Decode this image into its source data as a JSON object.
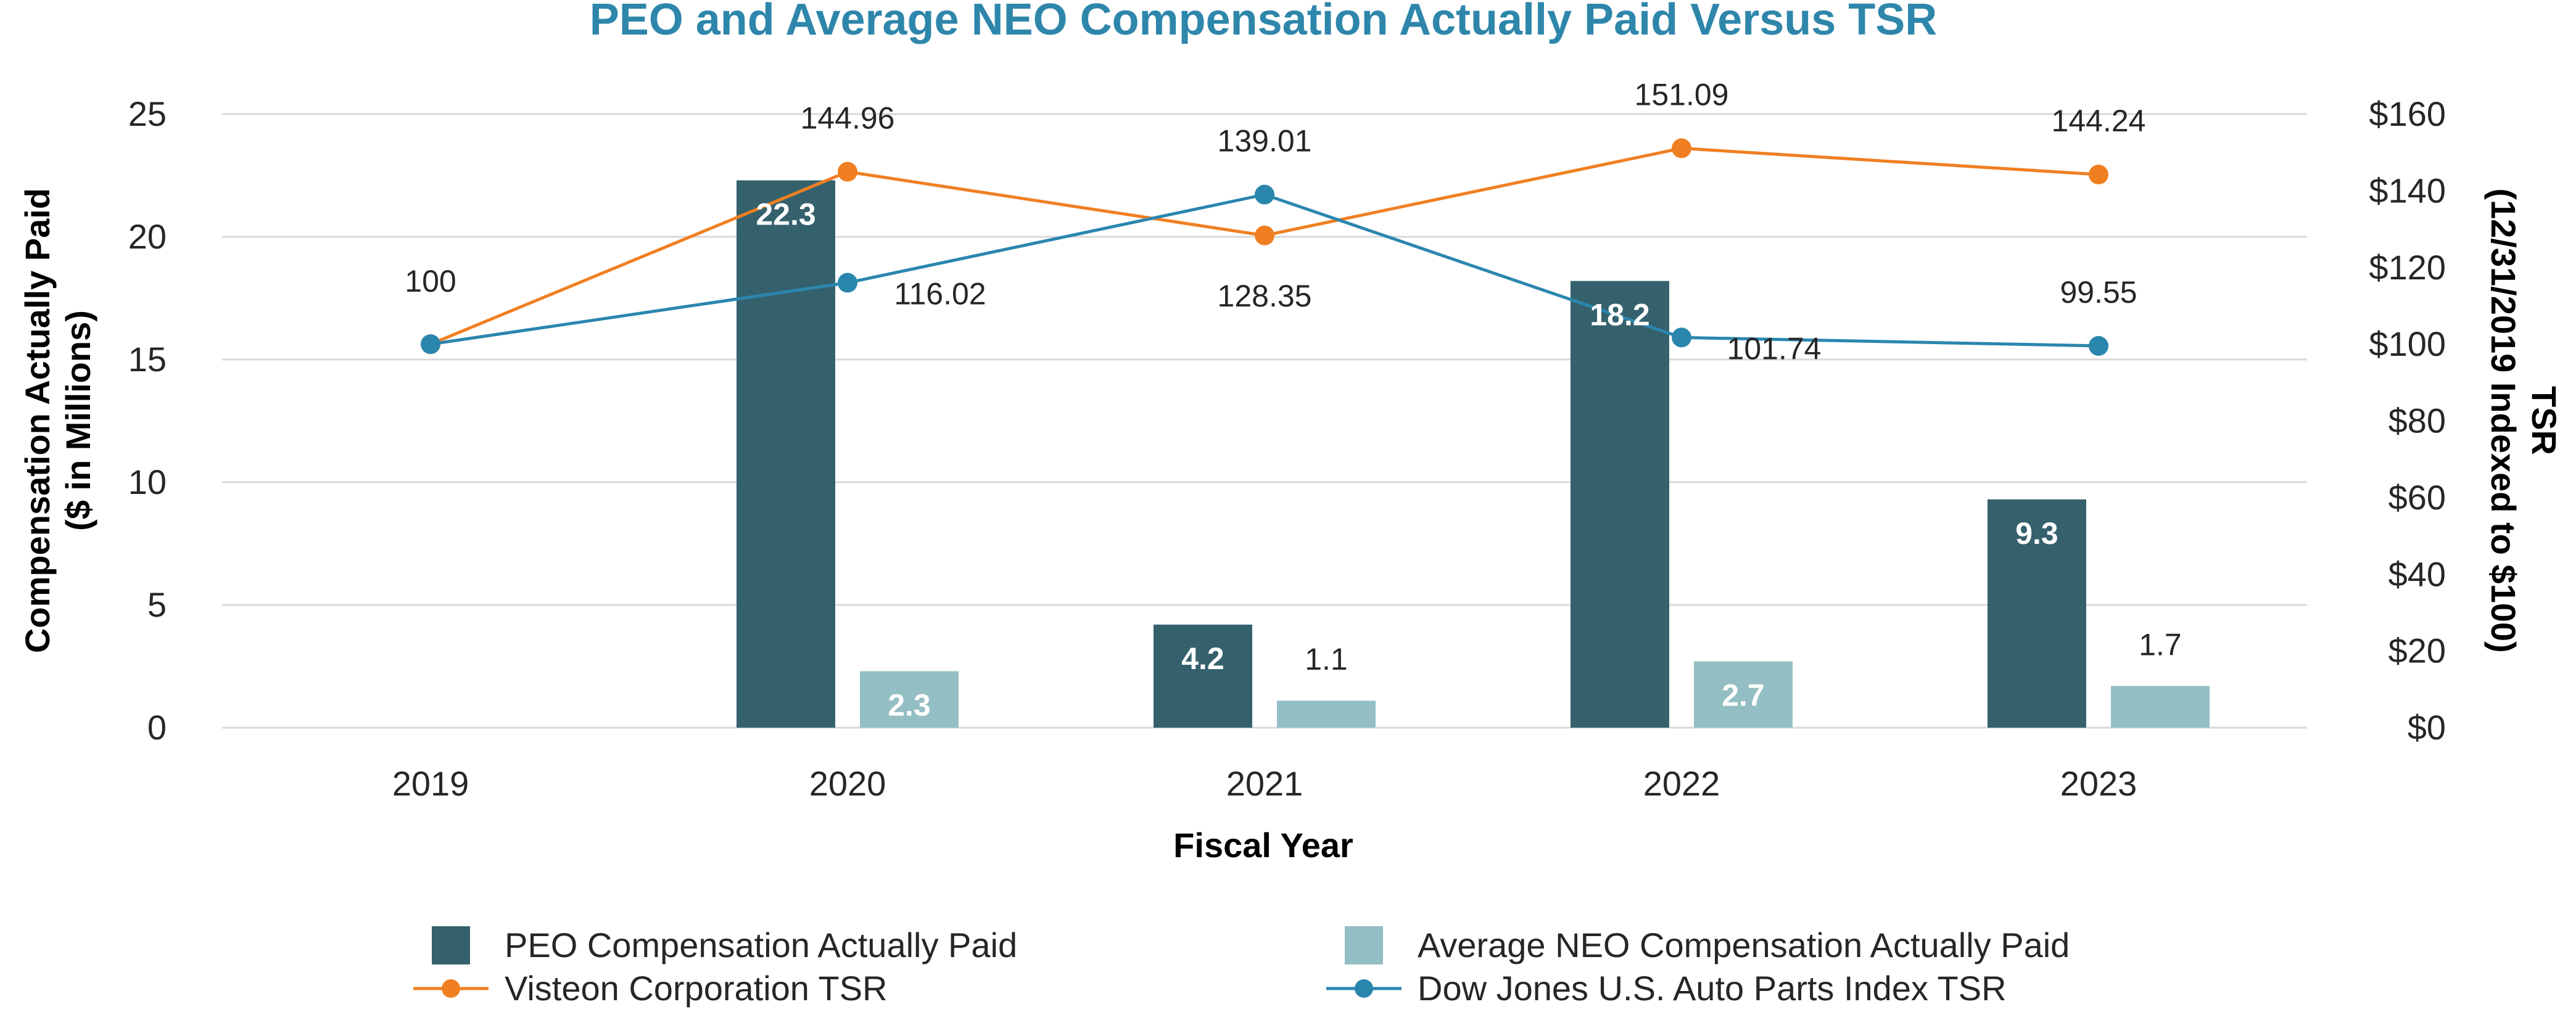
{
  "chart_data": {
    "type": "bar",
    "title": "PEO and Average NEO Compensation Actually Paid Versus TSR",
    "xlabel": "Fiscal Year",
    "ylabel_left": [
      "Compensation Actually Paid",
      "($ in Millions)"
    ],
    "ylabel_right": [
      "TSR",
      "(12/31/2019 Indexed to $100)"
    ],
    "categories": [
      "2019",
      "2020",
      "2021",
      "2022",
      "2023"
    ],
    "ylim_left": [
      0,
      25
    ],
    "yticks_left": [
      "0",
      "5",
      "10",
      "15",
      "20",
      "25"
    ],
    "ylim_right": [
      0,
      160
    ],
    "yticks_right": [
      "$0",
      "$20",
      "$40",
      "$60",
      "$80",
      "$100",
      "$120",
      "$140",
      "$160"
    ],
    "grid": true,
    "legend_position": "bottom",
    "series": [
      {
        "name": "PEO Compensation Actually Paid",
        "kind": "bar",
        "axis": "left",
        "color": "#35616D",
        "values": [
          null,
          22.3,
          4.2,
          18.2,
          9.3
        ],
        "labels": [
          "",
          "22.3",
          "4.2",
          "18.2",
          "9.3"
        ]
      },
      {
        "name": "Average NEO Compensation Actually Paid",
        "kind": "bar",
        "axis": "left",
        "color": "#93BFC4",
        "values": [
          null,
          2.3,
          1.1,
          2.7,
          1.7
        ],
        "labels": [
          "",
          "2.3",
          "1.1",
          "2.7",
          "1.7"
        ]
      },
      {
        "name": "Visteon Corporation TSR",
        "kind": "line",
        "axis": "right",
        "color": "#F07F22",
        "values": [
          100,
          144.96,
          128.35,
          151.09,
          144.24
        ],
        "labels": [
          "100",
          "144.96",
          "128.35",
          "151.09",
          "144.24"
        ]
      },
      {
        "name": "Dow Jones U.S. Auto Parts Index TSR",
        "kind": "line",
        "axis": "right",
        "color": "#2B86AE",
        "values": [
          100,
          116.02,
          139.01,
          101.74,
          99.55
        ],
        "labels": [
          "",
          "116.02",
          "139.01",
          "101.74",
          "99.55"
        ]
      }
    ]
  }
}
